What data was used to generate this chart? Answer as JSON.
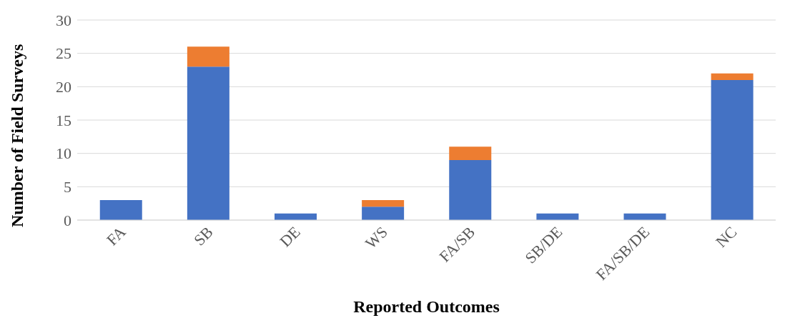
{
  "chart_data": {
    "type": "bar",
    "stacked": true,
    "xlabel": "Reported Outcomes",
    "ylabel": "Number of Field Surveys",
    "categories": [
      "FA",
      "SB",
      "DE",
      "WS",
      "FA/SB",
      "SB/DE",
      "FA/SB/DE",
      "NC"
    ],
    "series": [
      {
        "color": "#4472c4",
        "values": [
          3,
          23,
          1,
          2,
          9,
          1,
          1,
          21
        ]
      },
      {
        "color": "#ed7d31",
        "values": [
          0,
          3,
          0,
          1,
          2,
          0,
          0,
          1
        ]
      }
    ],
    "ylim": [
      0,
      30
    ],
    "yticks": [
      0,
      5,
      10,
      15,
      20,
      25,
      30
    ],
    "grid": "y",
    "legend": false
  }
}
